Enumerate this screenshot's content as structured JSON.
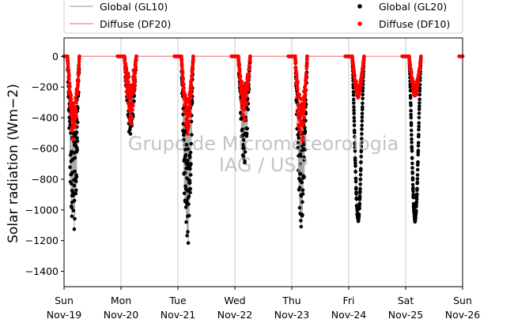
{
  "chart_data": {
    "type": "scatter",
    "title": "",
    "xlabel": "",
    "ylabel": "Solar radiation (Wm−2)",
    "ylim": [
      -1500,
      120
    ],
    "yticks": [
      0,
      -200,
      -400,
      -600,
      -800,
      -1000,
      -1200,
      -1400
    ],
    "xlim": [
      "2020-11-19",
      "2020-11-26"
    ],
    "xticks": [
      {
        "day": "Sun",
        "date": "Nov-19"
      },
      {
        "day": "Mon",
        "date": "Nov-20"
      },
      {
        "day": "Tue",
        "date": "Nov-21"
      },
      {
        "day": "Wed",
        "date": "Nov-22"
      },
      {
        "day": "Thu",
        "date": "Nov-23"
      },
      {
        "day": "Fri",
        "date": "Nov-24"
      },
      {
        "day": "Sat",
        "date": "Nov-25"
      },
      {
        "day": "Sun",
        "date": "Nov-26"
      }
    ],
    "grid": "vertical",
    "legend_position": "top",
    "series": [
      {
        "name": "Global (GL10)",
        "kind": "line",
        "color": "#aaaaaa"
      },
      {
        "name": "Diffuse (DF20)",
        "kind": "line",
        "color": "#f08080"
      },
      {
        "name": "Global (GL20)",
        "kind": "markers",
        "color": "#000000"
      },
      {
        "name": "Diffuse (DF10)",
        "kind": "markers",
        "color": "#ff0000"
      }
    ],
    "global_daily_min": [
      -1160,
      -530,
      -1260,
      -730,
      -1120,
      -1080,
      -1080
    ],
    "diffuse_daily_min": [
      -560,
      -480,
      -510,
      -420,
      -600,
      -270,
      -260
    ],
    "watermark": [
      "Grupo de Micrometeorologia",
      "IAG / USP"
    ]
  }
}
